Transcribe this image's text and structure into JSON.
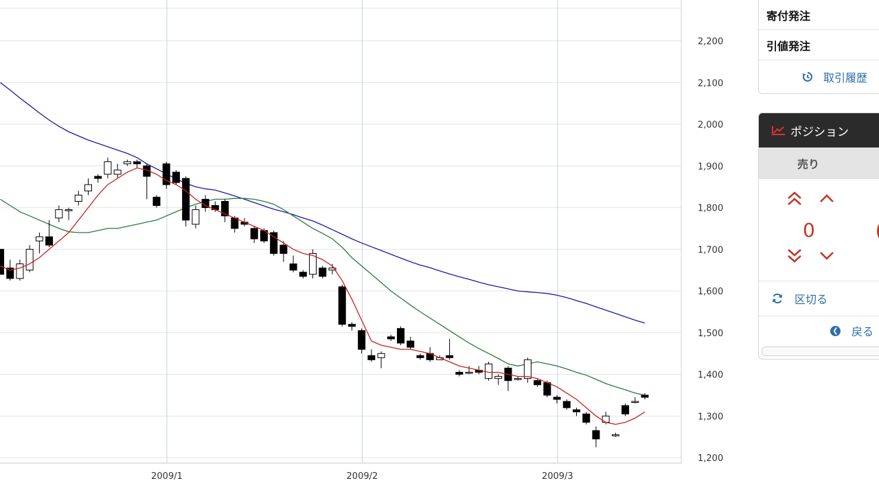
{
  "order_panel": {
    "items": [
      {
        "label": "寄付発注"
      },
      {
        "label": "引値発注"
      }
    ],
    "history_label": "取引履歴"
  },
  "position_panel": {
    "title": "ポジション",
    "tab_label": "売り",
    "quantity": "0",
    "kugiru_label": "区切る",
    "back_label": "戻る"
  },
  "colors": {
    "ma_short": "#cc1f1f",
    "ma_mid": "#2a7a3a",
    "ma_long": "#1a1aa6",
    "grid": "#e3e3e3",
    "month_line": "#c3d3e3",
    "candle_down": "#000000",
    "candle_up": "#ffffff",
    "accent_red": "#c0392b",
    "link_blue": "#2b6ea8"
  },
  "icons": {
    "history": "history-icon",
    "trend": "trend-up-icon",
    "refresh": "refresh-icon",
    "back": "chevron-left-circle-icon"
  },
  "chart_data": {
    "type": "candlestick",
    "y_ticks": [
      "1,200",
      "1,300",
      "1,400",
      "1,500",
      "1,600",
      "1,700",
      "1,800",
      "1,900",
      "2,000",
      "2,100",
      "2,200"
    ],
    "y_tick_values": [
      1200,
      1300,
      1400,
      1500,
      1600,
      1700,
      1800,
      1900,
      2000,
      2100,
      2200
    ],
    "ylim": [
      1187,
      2298
    ],
    "x_month_labels": [
      {
        "label": "2009/1",
        "bar_index": 16
      },
      {
        "label": "2009/2",
        "bar_index": 36
      },
      {
        "label": "2009/3",
        "bar_index": 56
      }
    ],
    "grid": true,
    "candles": [
      [
        1700,
        1640,
        1700,
        1640
      ],
      [
        1655,
        1630,
        1675,
        1625
      ],
      [
        1630,
        1665,
        1675,
        1625
      ],
      [
        1650,
        1700,
        1710,
        1645
      ],
      [
        1720,
        1730,
        1740,
        1690
      ],
      [
        1730,
        1710,
        1770,
        1705
      ],
      [
        1775,
        1795,
        1805,
        1765
      ],
      [
        1795,
        1795,
        1800,
        1770
      ],
      [
        1815,
        1830,
        1840,
        1805
      ],
      [
        1840,
        1855,
        1870,
        1830
      ],
      [
        1875,
        1870,
        1880,
        1860
      ],
      [
        1880,
        1910,
        1920,
        1870
      ],
      [
        1880,
        1890,
        1905,
        1870
      ],
      [
        1905,
        1910,
        1915,
        1900
      ],
      [
        1910,
        1905,
        1915,
        1895
      ],
      [
        1900,
        1875,
        1905,
        1820
      ],
      [
        1825,
        1805,
        1830,
        1800
      ],
      [
        1905,
        1855,
        1910,
        1845
      ],
      [
        1885,
        1860,
        1890,
        1855
      ],
      [
        1870,
        1770,
        1875,
        1755
      ],
      [
        1760,
        1795,
        1805,
        1750
      ],
      [
        1820,
        1800,
        1830,
        1790
      ],
      [
        1805,
        1795,
        1815,
        1790
      ],
      [
        1815,
        1780,
        1820,
        1765
      ],
      [
        1775,
        1750,
        1780,
        1740
      ],
      [
        1765,
        1760,
        1775,
        1755
      ],
      [
        1750,
        1725,
        1755,
        1715
      ],
      [
        1745,
        1720,
        1750,
        1715
      ],
      [
        1740,
        1690,
        1745,
        1685
      ],
      [
        1710,
        1690,
        1720,
        1670
      ],
      [
        1665,
        1650,
        1685,
        1645
      ],
      [
        1645,
        1635,
        1650,
        1630
      ],
      [
        1640,
        1690,
        1700,
        1630
      ],
      [
        1655,
        1635,
        1660,
        1630
      ],
      [
        1650,
        1655,
        1665,
        1640
      ],
      [
        1610,
        1520,
        1615,
        1515
      ],
      [
        1520,
        1515,
        1525,
        1505
      ],
      [
        1505,
        1460,
        1510,
        1450
      ],
      [
        1445,
        1435,
        1460,
        1430
      ],
      [
        1440,
        1450,
        1455,
        1415
      ],
      [
        1490,
        1485,
        1495,
        1480
      ],
      [
        1510,
        1475,
        1515,
        1470
      ],
      [
        1480,
        1465,
        1490,
        1460
      ],
      [
        1445,
        1440,
        1450,
        1435
      ],
      [
        1450,
        1435,
        1465,
        1430
      ],
      [
        1435,
        1440,
        1445,
        1435
      ],
      [
        1445,
        1440,
        1485,
        1435
      ],
      [
        1405,
        1400,
        1410,
        1395
      ],
      [
        1405,
        1405,
        1420,
        1400
      ],
      [
        1410,
        1405,
        1420,
        1400
      ],
      [
        1390,
        1425,
        1430,
        1385
      ],
      [
        1390,
        1395,
        1400,
        1375
      ],
      [
        1415,
        1385,
        1420,
        1360
      ],
      [
        1390,
        1390,
        1395,
        1385
      ],
      [
        1390,
        1435,
        1440,
        1380
      ],
      [
        1385,
        1375,
        1390,
        1370
      ],
      [
        1380,
        1350,
        1385,
        1345
      ],
      [
        1345,
        1340,
        1350,
        1330
      ],
      [
        1335,
        1320,
        1340,
        1315
      ],
      [
        1315,
        1310,
        1320,
        1300
      ],
      [
        1305,
        1285,
        1310,
        1280
      ],
      [
        1265,
        1245,
        1275,
        1225
      ],
      [
        1285,
        1300,
        1310,
        1280
      ],
      [
        1255,
        1255,
        1260,
        1250
      ],
      [
        1325,
        1305,
        1330,
        1300
      ],
      [
        1335,
        1335,
        1345,
        1330
      ],
      [
        1350,
        1345,
        1355,
        1340
      ]
    ],
    "ma_short": [
      1660,
      1650,
      1655,
      1665,
      1680,
      1700,
      1720,
      1740,
      1770,
      1800,
      1830,
      1855,
      1870,
      1885,
      1895,
      1890,
      1880,
      1865,
      1855,
      1840,
      1820,
      1805,
      1795,
      1785,
      1775,
      1765,
      1755,
      1745,
      1730,
      1715,
      1700,
      1690,
      1685,
      1675,
      1660,
      1625,
      1580,
      1530,
      1480,
      1470,
      1465,
      1460,
      1460,
      1455,
      1450,
      1440,
      1430,
      1420,
      1415,
      1410,
      1405,
      1405,
      1400,
      1395,
      1395,
      1390,
      1380,
      1370,
      1355,
      1340,
      1320,
      1300,
      1285,
      1280,
      1285,
      1295,
      1310
    ],
    "ma_mid": [
      1820,
      1805,
      1790,
      1780,
      1770,
      1760,
      1750,
      1742,
      1740,
      1740,
      1745,
      1750,
      1750,
      1755,
      1760,
      1765,
      1770,
      1780,
      1790,
      1800,
      1808,
      1815,
      1820,
      1820,
      1822,
      1822,
      1820,
      1815,
      1808,
      1795,
      1780,
      1765,
      1750,
      1738,
      1725,
      1705,
      1680,
      1660,
      1640,
      1620,
      1600,
      1583,
      1566,
      1550,
      1535,
      1520,
      1505,
      1490,
      1475,
      1462,
      1450,
      1438,
      1425,
      1420,
      1425,
      1430,
      1425,
      1420,
      1413,
      1405,
      1398,
      1388,
      1378,
      1370,
      1363,
      1355,
      1350
    ],
    "ma_long": [
      2100,
      2082,
      2063,
      2045,
      2027,
      2010,
      1995,
      1982,
      1972,
      1962,
      1954,
      1946,
      1938,
      1930,
      1920,
      1905,
      1893,
      1881,
      1869,
      1858,
      1850,
      1845,
      1842,
      1835,
      1828,
      1820,
      1812,
      1804,
      1796,
      1790,
      1783,
      1775,
      1768,
      1758,
      1747,
      1736,
      1725,
      1715,
      1706,
      1697,
      1688,
      1679,
      1670,
      1662,
      1656,
      1648,
      1641,
      1634,
      1628,
      1621,
      1615,
      1610,
      1605,
      1600,
      1598,
      1596,
      1594,
      1590,
      1584,
      1577,
      1570,
      1562,
      1554,
      1546,
      1538,
      1530,
      1523
    ]
  }
}
